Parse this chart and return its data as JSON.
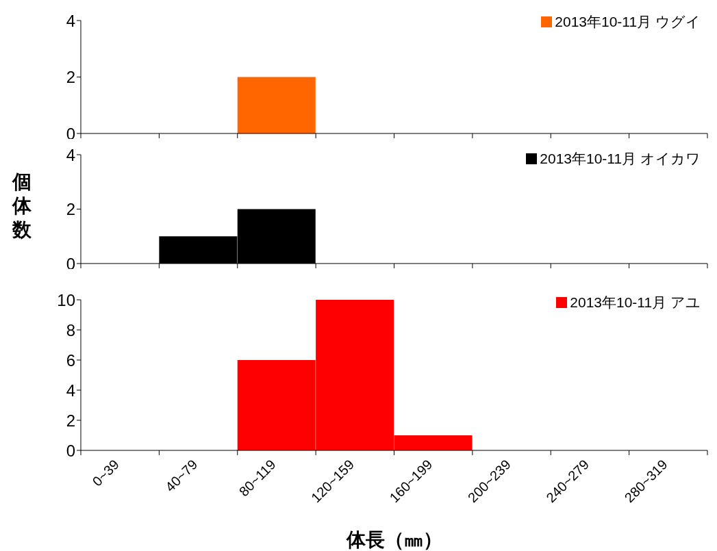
{
  "chart_data": [
    {
      "type": "bar",
      "categories": [
        null,
        null,
        null,
        null,
        null,
        null,
        null,
        null
      ],
      "series": [
        {
          "name": "2013年10-11月 ウグイ",
          "color": "#ff6600",
          "values": [
            0,
            0,
            2,
            0,
            0,
            0,
            0,
            0
          ]
        }
      ],
      "ylim": [
        0,
        4
      ],
      "yticks": [
        0,
        2,
        4
      ],
      "grid": false,
      "legend": "top right",
      "tick_labels": "y"
    },
    {
      "type": "bar",
      "categories": [
        null,
        null,
        null,
        null,
        null,
        null,
        null,
        null
      ],
      "series": [
        {
          "name": "2013年10-11月 オイカワ",
          "color": "#000000",
          "values": [
            0,
            1,
            2,
            0,
            0,
            0,
            0,
            0
          ]
        }
      ],
      "ylabel": "個体数",
      "ylim": [
        0,
        4
      ],
      "yticks": [
        0,
        2,
        4
      ],
      "grid": false,
      "legend": "top right",
      "tick_labels": "y"
    },
    {
      "type": "bar",
      "categories": [
        "0~39",
        "40~79",
        "80~119",
        "120~159",
        "160~199",
        "200~239",
        "240~279",
        "280~319"
      ],
      "series": [
        {
          "name": "2013年10-11月 アユ",
          "color": "#ff0000",
          "values": [
            0,
            0,
            6,
            10,
            1,
            0,
            0,
            0
          ]
        }
      ],
      "xlabel": "体長（㎜）",
      "ylim": [
        0,
        10
      ],
      "yticks": [
        0,
        2,
        4,
        6,
        8,
        10
      ],
      "grid": false,
      "legend": "top right"
    }
  ]
}
